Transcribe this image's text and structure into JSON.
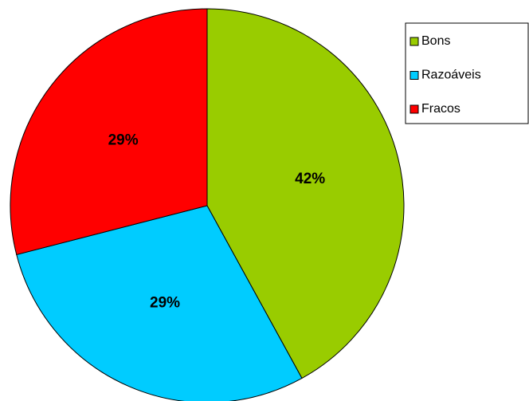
{
  "chart_data": {
    "type": "pie",
    "categories": [
      "Bons",
      "Razoáveis",
      "Fracos"
    ],
    "values": [
      42,
      29,
      29
    ],
    "value_labels": [
      "42%",
      "29%",
      "29%"
    ],
    "colors": [
      "#99cc00",
      "#00ccff",
      "#ff0000"
    ],
    "legend": "top-right"
  }
}
